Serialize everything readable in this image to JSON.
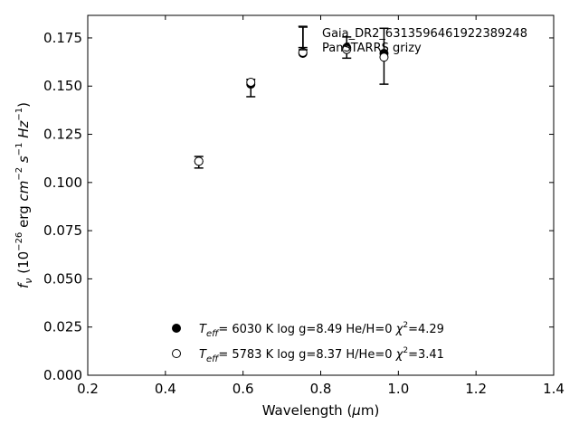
{
  "chart_data": {
    "type": "scatter",
    "title": "",
    "xlabel": {
      "pre": "Wavelength (",
      "sym": "μ",
      "post": "m)"
    },
    "ylabel": "",
    "xlim": [
      0.2,
      1.4
    ],
    "ylim": [
      0.0,
      0.1867
    ],
    "x_ticks": [
      "0.2",
      "0.4",
      "0.6",
      "0.8",
      "1.0",
      "1.2",
      "1.4"
    ],
    "y_ticks": [
      "0.000",
      "0.025",
      "0.050",
      "0.075",
      "0.100",
      "0.125",
      "0.150",
      "0.175"
    ],
    "grid": false,
    "legend_placement": "top-right",
    "errorbar_series": {
      "name": "Gaia_DR2_6313596461922389248\nPanSTARRS grizy",
      "points": [
        {
          "x": 0.486,
          "y": 0.1105,
          "err": 0.003
        },
        {
          "x": 0.62,
          "y": 0.149,
          "err": 0.0045
        },
        {
          "x": 0.754,
          "y": 0.1755,
          "err": 0.0055
        },
        {
          "x": 0.867,
          "y": 0.17,
          "err": 0.0055
        },
        {
          "x": 0.963,
          "y": 0.1655,
          "err": 0.0145
        }
      ]
    },
    "series": [
      {
        "name": "Teff= 6030 K log g=8.49 He/H=0 χ2=4.29",
        "marker": "filled-circle",
        "points": [
          {
            "x": 0.486,
            "y": 0.111
          },
          {
            "x": 0.62,
            "y": 0.151
          },
          {
            "x": 0.754,
            "y": 0.167
          },
          {
            "x": 0.867,
            "y": 0.17
          },
          {
            "x": 0.963,
            "y": 0.167
          }
        ]
      },
      {
        "name": "Teff= 5783 K log g=8.37 H/He=0 χ2=3.41",
        "marker": "open-circle",
        "points": [
          {
            "x": 0.486,
            "y": 0.111
          },
          {
            "x": 0.62,
            "y": 0.152
          },
          {
            "x": 0.754,
            "y": 0.1675
          },
          {
            "x": 0.867,
            "y": 0.169
          },
          {
            "x": 0.963,
            "y": 0.165
          }
        ]
      }
    ],
    "legend_top": [
      "Gaia_DR2_6313596461922389248",
      "PanSTARRS grizy"
    ],
    "legend_bottom": [
      {
        "teff": "6030",
        "logg": "8.49",
        "comp": "He/H=0",
        "chi2": "4.29",
        "marker": "filled-circle"
      },
      {
        "teff": "5783",
        "logg": "8.37",
        "comp": "H/He=0",
        "chi2": "3.41",
        "marker": "open-circle"
      }
    ],
    "text": {
      "ylabel_parts": {
        "f": "f",
        "nu": "ν",
        "open": " (10",
        "exp1": "−26",
        "erg": " erg ",
        "cm": "cm",
        "exp2": "−2",
        "s": " s",
        "exp3": "−1",
        "Hz": " Hz",
        "exp4": "−1",
        "close": ")"
      },
      "teff_sym": "T",
      "teff_sub": "eff",
      "eq": "=  ",
      "K": " K  log g=",
      "chi": "χ",
      "chi_sup": "2",
      "chi_eq": "="
    }
  }
}
